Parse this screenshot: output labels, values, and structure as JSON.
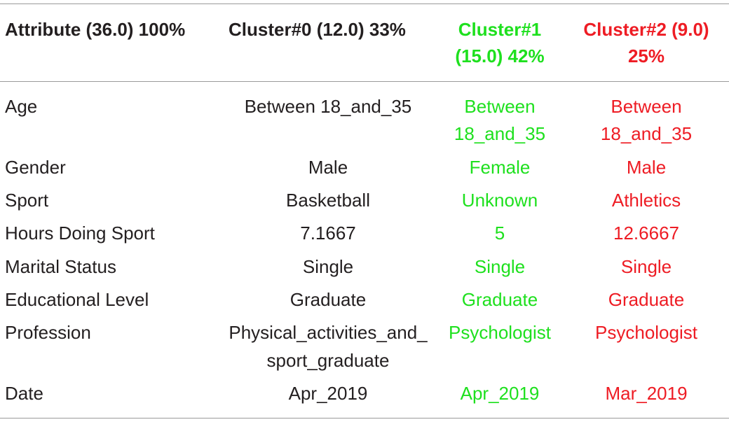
{
  "colors": {
    "text": "#231f20",
    "cluster1": "#1ee01e",
    "cluster2": "#ee1c24",
    "rule": "#9a9a9a"
  },
  "header": {
    "attribute": "Attribute (36.0) 100%",
    "cluster0": "Cluster#0 (12.0) 33%",
    "cluster1_line1": "Cluster#1",
    "cluster1_line2": "(15.0) 42%",
    "cluster2_line1": "Cluster#2 (9.0)",
    "cluster2_line2": "25%"
  },
  "rows": [
    {
      "attribute": "Age",
      "cluster0": "Between 18_and_35",
      "cluster1_l1": "Between",
      "cluster1_l2": "18_and_35",
      "cluster2_l1": "Between",
      "cluster2_l2": "18_and_35"
    },
    {
      "attribute": "Gender",
      "cluster0": "Male",
      "cluster1": "Female",
      "cluster2": "Male"
    },
    {
      "attribute": "Sport",
      "cluster0": "Basketball",
      "cluster1": "Unknown",
      "cluster2": "Athletics"
    },
    {
      "attribute": "Hours Doing Sport",
      "cluster0": "7.1667",
      "cluster1": "5",
      "cluster2": "12.6667"
    },
    {
      "attribute": "Marital Status",
      "cluster0": "Single",
      "cluster1": "Single",
      "cluster2": "Single"
    },
    {
      "attribute": "Educational Level",
      "cluster0": "Graduate",
      "cluster1": "Graduate",
      "cluster2": "Graduate"
    },
    {
      "attribute": "Profession",
      "cluster0_l1": "Physical_activities_and_",
      "cluster0_l2": "sport_graduate",
      "cluster1": "Psychologist",
      "cluster2": "Psychologist"
    },
    {
      "attribute": "Date",
      "cluster0": "Apr_2019",
      "cluster1": "Apr_2019",
      "cluster2": "Mar_2019"
    }
  ]
}
